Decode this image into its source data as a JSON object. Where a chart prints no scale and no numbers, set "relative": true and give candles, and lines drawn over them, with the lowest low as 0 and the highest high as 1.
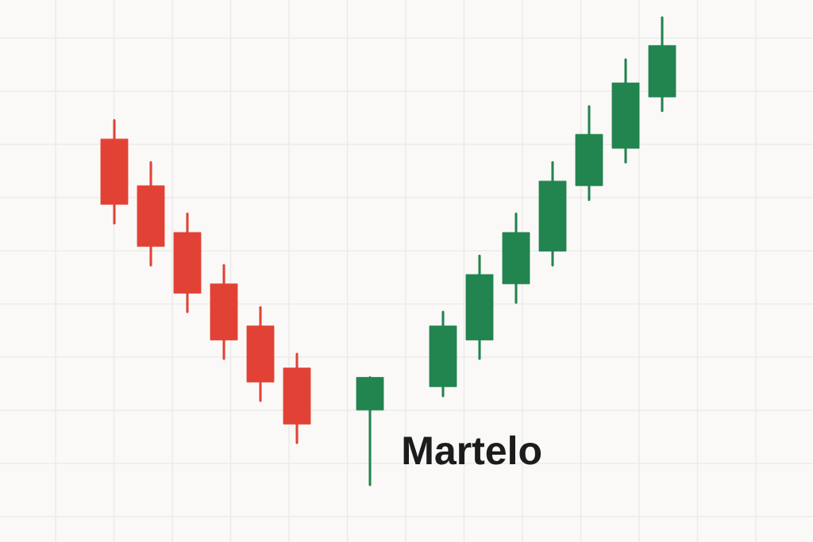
{
  "chart_data": {
    "type": "candlestick",
    "relative": true,
    "grid": true,
    "categories": [
      null,
      null,
      null,
      null,
      null,
      null,
      null,
      null,
      null,
      null,
      null,
      null,
      null,
      null,
      null,
      null
    ],
    "ohlc": [
      [
        0.74,
        0.78,
        0.56,
        0.6
      ],
      [
        0.64,
        0.69,
        0.47,
        0.51
      ],
      [
        0.54,
        0.58,
        0.37,
        0.41
      ],
      [
        0.43,
        0.47,
        0.27,
        0.31
      ],
      [
        0.34,
        0.38,
        0.18,
        0.22
      ],
      [
        0.25,
        0.28,
        0.09,
        0.13
      ],
      null,
      [
        0.16,
        0.23,
        0,
        0.23
      ],
      null,
      [
        0.21,
        0.37,
        0.19,
        0.34
      ],
      [
        0.31,
        0.49,
        0.27,
        0.45
      ],
      [
        0.43,
        0.58,
        0.39,
        0.54
      ],
      [
        0.5,
        0.69,
        0.47,
        0.65
      ],
      [
        0.64,
        0.81,
        0.61,
        0.75
      ],
      [
        0.72,
        0.91,
        0.69,
        0.86
      ],
      [
        0.83,
        1,
        0.8,
        0.94
      ]
    ],
    "colors": [
      "#e24235",
      "#e24235",
      "#e24235",
      "#e24235",
      "#e24235",
      "#e24235",
      null,
      "#22844f",
      null,
      "#22844f",
      "#22844f",
      "#22844f",
      "#22844f",
      "#22844f",
      "#22844f",
      "#22844f"
    ],
    "annotations": [
      "Martelo"
    ]
  }
}
